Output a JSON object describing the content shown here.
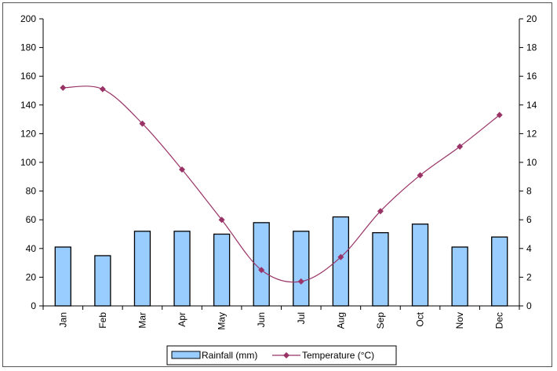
{
  "chart_data": {
    "type": "bar+line",
    "title": "",
    "categories": [
      "Jan",
      "Feb",
      "Mar",
      "Apr",
      "May",
      "Jun",
      "Jul",
      "Aug",
      "Sep",
      "Oct",
      "Nov",
      "Dec"
    ],
    "series": [
      {
        "name": "Rainfall (mm)",
        "type": "bar",
        "axis": "left",
        "color": "#99ccff",
        "values": [
          41,
          35,
          52,
          52,
          50,
          58,
          52,
          62,
          51,
          57,
          41,
          48
        ]
      },
      {
        "name": "Temperature (°C)",
        "type": "line",
        "axis": "right",
        "color": "#993366",
        "values": [
          15.2,
          15.1,
          12.7,
          9.5,
          6.0,
          2.5,
          1.7,
          3.4,
          6.6,
          9.1,
          11.1,
          13.3
        ]
      }
    ],
    "y_left": {
      "min": 0,
      "max": 200,
      "ticks": [
        0,
        20,
        40,
        60,
        80,
        100,
        120,
        140,
        160,
        180,
        200
      ]
    },
    "y_right": {
      "min": 0,
      "max": 20,
      "ticks": [
        0,
        2,
        4,
        6,
        8,
        10,
        12,
        14,
        16,
        18,
        20
      ]
    },
    "grid": false,
    "legend": "bottom-center"
  }
}
